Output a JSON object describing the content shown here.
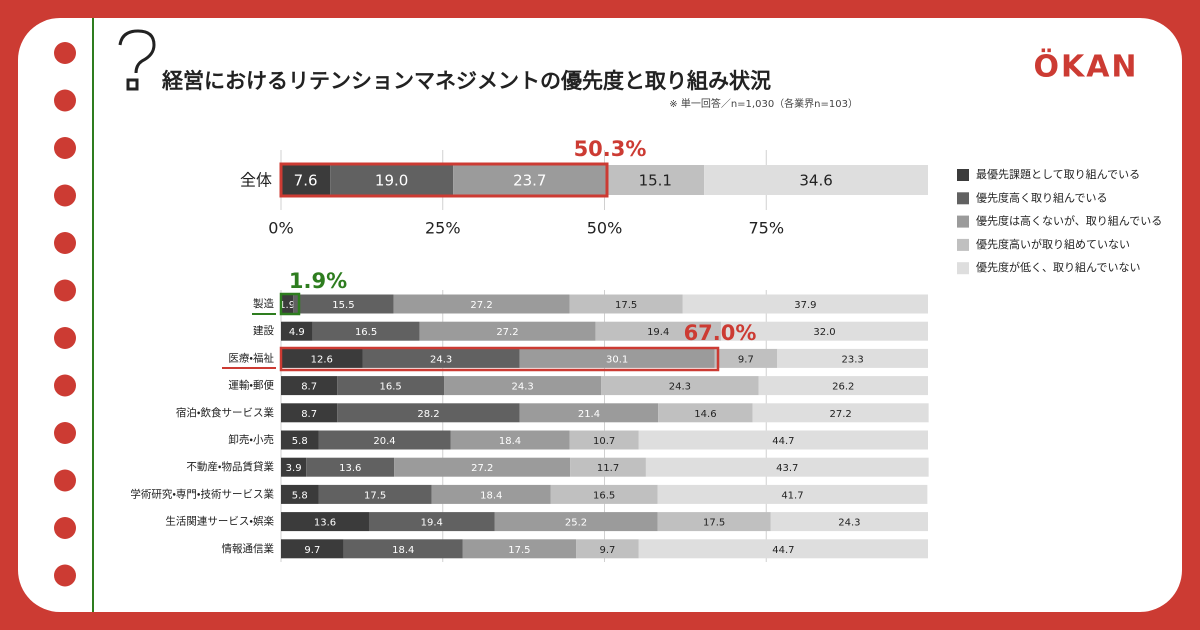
{
  "brand": "ÖKAN",
  "chart_data": [
    {
      "type": "bar",
      "orientation": "horizontal",
      "stacked": true,
      "title": "経営におけるリテンションマネジメントの優先度と取り組み状況",
      "subtitle": "※ 単一回答／n=1,030（各業界n=103）",
      "annotation": "50.3%",
      "categories": [
        "全体"
      ],
      "series": [
        {
          "name": "最優先課題として取り組んでいる",
          "color": "#3b3b3b",
          "values": [
            7.6
          ]
        },
        {
          "name": "優先度高く取り組んでいる",
          "color": "#616161",
          "values": [
            19.0
          ],
          "value_labels": [
            "19.0"
          ]
        },
        {
          "name": "優先度は高くないが、取り組んでいる",
          "color": "#9b9b9b",
          "values": [
            23.7
          ]
        },
        {
          "name": "優先度高いが取り組めていない",
          "color": "#c0c0c0",
          "values": [
            15.1
          ]
        },
        {
          "name": "優先度が低く、取り組んでいない",
          "color": "#dedede",
          "values": [
            34.6
          ]
        }
      ],
      "xlim": [
        0,
        100
      ],
      "xticks": [
        {
          "value": 0,
          "label": "0%"
        },
        {
          "value": 25,
          "label": "25%"
        },
        {
          "value": 50,
          "label": "50%"
        },
        {
          "value": 75,
          "label": "75%"
        }
      ],
      "grid": true,
      "legend": "right"
    },
    {
      "type": "bar",
      "orientation": "horizontal",
      "stacked": true,
      "annotations": [
        "1.9%",
        "67.0%"
      ],
      "categories": [
        "製造",
        "建設",
        "医療・福祉",
        "運輸・郵便",
        "宿泊・飲食サービス業",
        "卸売・小売",
        "不動産・物品賃貸業",
        "学術研究・専門・技術サービス業",
        "生活関連サービス・娯楽",
        "情報通信業"
      ],
      "series": [
        {
          "color": "#3b3b3b",
          "values": [
            1.9,
            4.9,
            12.6,
            8.7,
            8.7,
            5.8,
            3.9,
            5.8,
            13.6,
            9.7
          ]
        },
        {
          "color": "#616161",
          "values": [
            15.5,
            16.5,
            24.3,
            16.5,
            28.2,
            20.4,
            13.6,
            17.5,
            19.4,
            18.4
          ]
        },
        {
          "color": "#9b9b9b",
          "values": [
            27.2,
            27.2,
            30.1,
            24.3,
            21.4,
            18.4,
            27.2,
            18.4,
            25.2,
            17.5
          ]
        },
        {
          "color": "#c0c0c0",
          "values": [
            17.5,
            19.4,
            9.7,
            24.3,
            14.6,
            10.7,
            11.7,
            16.5,
            17.5,
            9.7
          ]
        },
        {
          "color": "#dedede",
          "values": [
            37.9,
            32.0,
            23.3,
            26.2,
            27.2,
            44.7,
            43.7,
            41.7,
            24.3,
            44.7
          ],
          "value_labels": [
            "37.9",
            "32.0",
            "23.3",
            "26.2",
            "27.2",
            "44.7",
            "43.7",
            "41.7",
            "24.3",
            "44.7"
          ]
        }
      ],
      "xlim": [
        0,
        100
      ],
      "grid": true
    }
  ]
}
